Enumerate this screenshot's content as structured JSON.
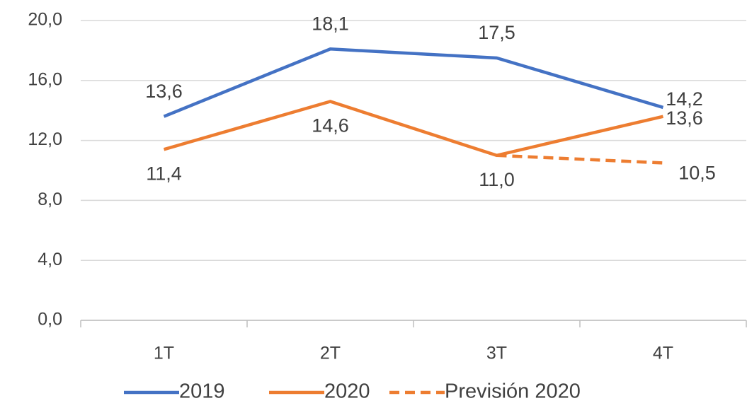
{
  "chart_data": {
    "type": "line",
    "categories": [
      "1T",
      "2T",
      "3T",
      "4T"
    ],
    "series": [
      {
        "name": "2019",
        "color": "#4472c4",
        "values": [
          13.6,
          18.1,
          17.5,
          14.2
        ],
        "value_labels": [
          "13,6",
          "18,1",
          "17,5",
          "14,2"
        ]
      },
      {
        "name": "2020",
        "color": "#ed7d31",
        "values": [
          11.4,
          14.6,
          11.0,
          13.6
        ],
        "value_labels": [
          "11,4",
          "14,6",
          "11,0",
          "13,6"
        ]
      },
      {
        "name": "Previsión 2020",
        "color": "#ed7d31",
        "dashed": true,
        "values": [
          null,
          null,
          11.0,
          10.5
        ],
        "value_labels": [
          null,
          null,
          null,
          "10,5"
        ]
      }
    ],
    "ylim": [
      0,
      20
    ],
    "yticks": [
      {
        "value": 0,
        "label": "0,0"
      },
      {
        "value": 4,
        "label": "4,0"
      },
      {
        "value": 8,
        "label": "8,0"
      },
      {
        "value": 12,
        "label": "12,0"
      },
      {
        "value": 16,
        "label": "16,0"
      },
      {
        "value": 20,
        "label": "20,0"
      }
    ],
    "grid": true,
    "legend": "bottom"
  }
}
